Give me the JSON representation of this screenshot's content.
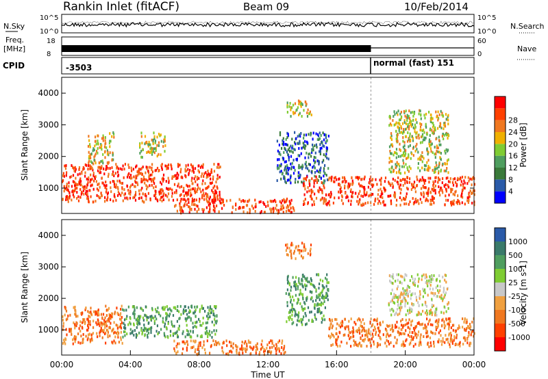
{
  "header": {
    "station": "Rankin Inlet (fitACF)",
    "beam": "Beam 09",
    "date": "10/Feb/2014"
  },
  "noise_panel": {
    "left_label": "N.Sky",
    "right_label": "N.Search",
    "left_ticks": [
      "10^5",
      "10^0"
    ],
    "right_ticks": [
      "10^5",
      "10^0"
    ]
  },
  "freq_panel": {
    "left_label_1": "Freq.",
    "left_label_2": "[MHz]",
    "left_ticks": [
      "18",
      "8"
    ],
    "right_label": "Nave",
    "right_ticks": [
      "60",
      "0"
    ]
  },
  "cpid_panel": {
    "label": "CPID",
    "segment_1": "-3503",
    "segment_2": "normal (fast) 151"
  },
  "colors": {
    "power": [
      "#0000ff",
      "#2a5aa8",
      "#3a7a3a",
      "#4f9e5f",
      "#7fcc33",
      "#f0b000",
      "#f07820",
      "#ff4000",
      "#ff0000"
    ],
    "velocity": [
      "#ff0000",
      "#ff4000",
      "#f07820",
      "#f0a040",
      "#c8c8c8",
      "#7fcc33",
      "#4f9e5f",
      "#3a7a6a",
      "#2a5aa8"
    ]
  },
  "chart_data": [
    {
      "type": "heatmap",
      "name": "power",
      "ylabel": "Slant Range [km]",
      "yticks": [
        "1000",
        "2000",
        "3000",
        "4000"
      ],
      "ylim": [
        200,
        4500
      ],
      "colorbar_label": "Power [dB]",
      "colorbar_ticks": [
        "4",
        "8",
        "12",
        "16",
        "20",
        "24",
        "28"
      ],
      "blobs": [
        {
          "t0": 0.0,
          "t1": 9.2,
          "r0": 600,
          "r1": 1800,
          "level": "high"
        },
        {
          "t0": 1.5,
          "t1": 3.0,
          "r0": 1800,
          "r1": 2800,
          "level": "mid"
        },
        {
          "t0": 4.5,
          "t1": 6.0,
          "r0": 2000,
          "r1": 2800,
          "level": "mid"
        },
        {
          "t0": 6.5,
          "t1": 13.5,
          "r0": 250,
          "r1": 700,
          "level": "high"
        },
        {
          "t0": 12.5,
          "t1": 15.5,
          "r0": 1200,
          "r1": 2800,
          "level": "low"
        },
        {
          "t0": 14.0,
          "t1": 24.0,
          "r0": 500,
          "r1": 1400,
          "level": "high"
        },
        {
          "t0": 19.0,
          "t1": 22.5,
          "r0": 1500,
          "r1": 3500,
          "level": "mid"
        },
        {
          "t0": 13.0,
          "t1": 14.5,
          "r0": 3300,
          "r1": 3800,
          "level": "mid"
        }
      ]
    },
    {
      "type": "heatmap",
      "name": "velocity",
      "ylabel": "Slant Range [km]",
      "yticks": [
        "1000",
        "2000",
        "3000",
        "4000"
      ],
      "ylim": [
        200,
        4500
      ],
      "colorbar_label": "Velocity [m s-1]",
      "colorbar_ticks": [
        "1000",
        "500",
        "100",
        "25",
        "-25",
        "-100",
        "-500",
        "-1000"
      ],
      "blobs": [
        {
          "t0": 0.0,
          "t1": 3.5,
          "r0": 600,
          "r1": 1800,
          "level": "neg"
        },
        {
          "t0": 3.5,
          "t1": 9.0,
          "r0": 800,
          "r1": 1800,
          "level": "pos"
        },
        {
          "t0": 6.5,
          "t1": 13.0,
          "r0": 250,
          "r1": 700,
          "level": "neg"
        },
        {
          "t0": 13.0,
          "t1": 15.5,
          "r0": 1200,
          "r1": 2800,
          "level": "pos"
        },
        {
          "t0": 15.5,
          "t1": 24.0,
          "r0": 500,
          "r1": 1400,
          "level": "neg"
        },
        {
          "t0": 19.0,
          "t1": 22.5,
          "r0": 1500,
          "r1": 2800,
          "level": "zero"
        },
        {
          "t0": 13.0,
          "t1": 14.5,
          "r0": 3300,
          "r1": 3800,
          "level": "neg"
        }
      ]
    }
  ],
  "xaxis": {
    "label": "Time UT",
    "ticks": [
      "00:00",
      "04:00",
      "08:00",
      "12:00",
      "16:00",
      "20:00",
      "00:00"
    ],
    "xlim": [
      0,
      24
    ],
    "mode_change_hour": 18
  }
}
